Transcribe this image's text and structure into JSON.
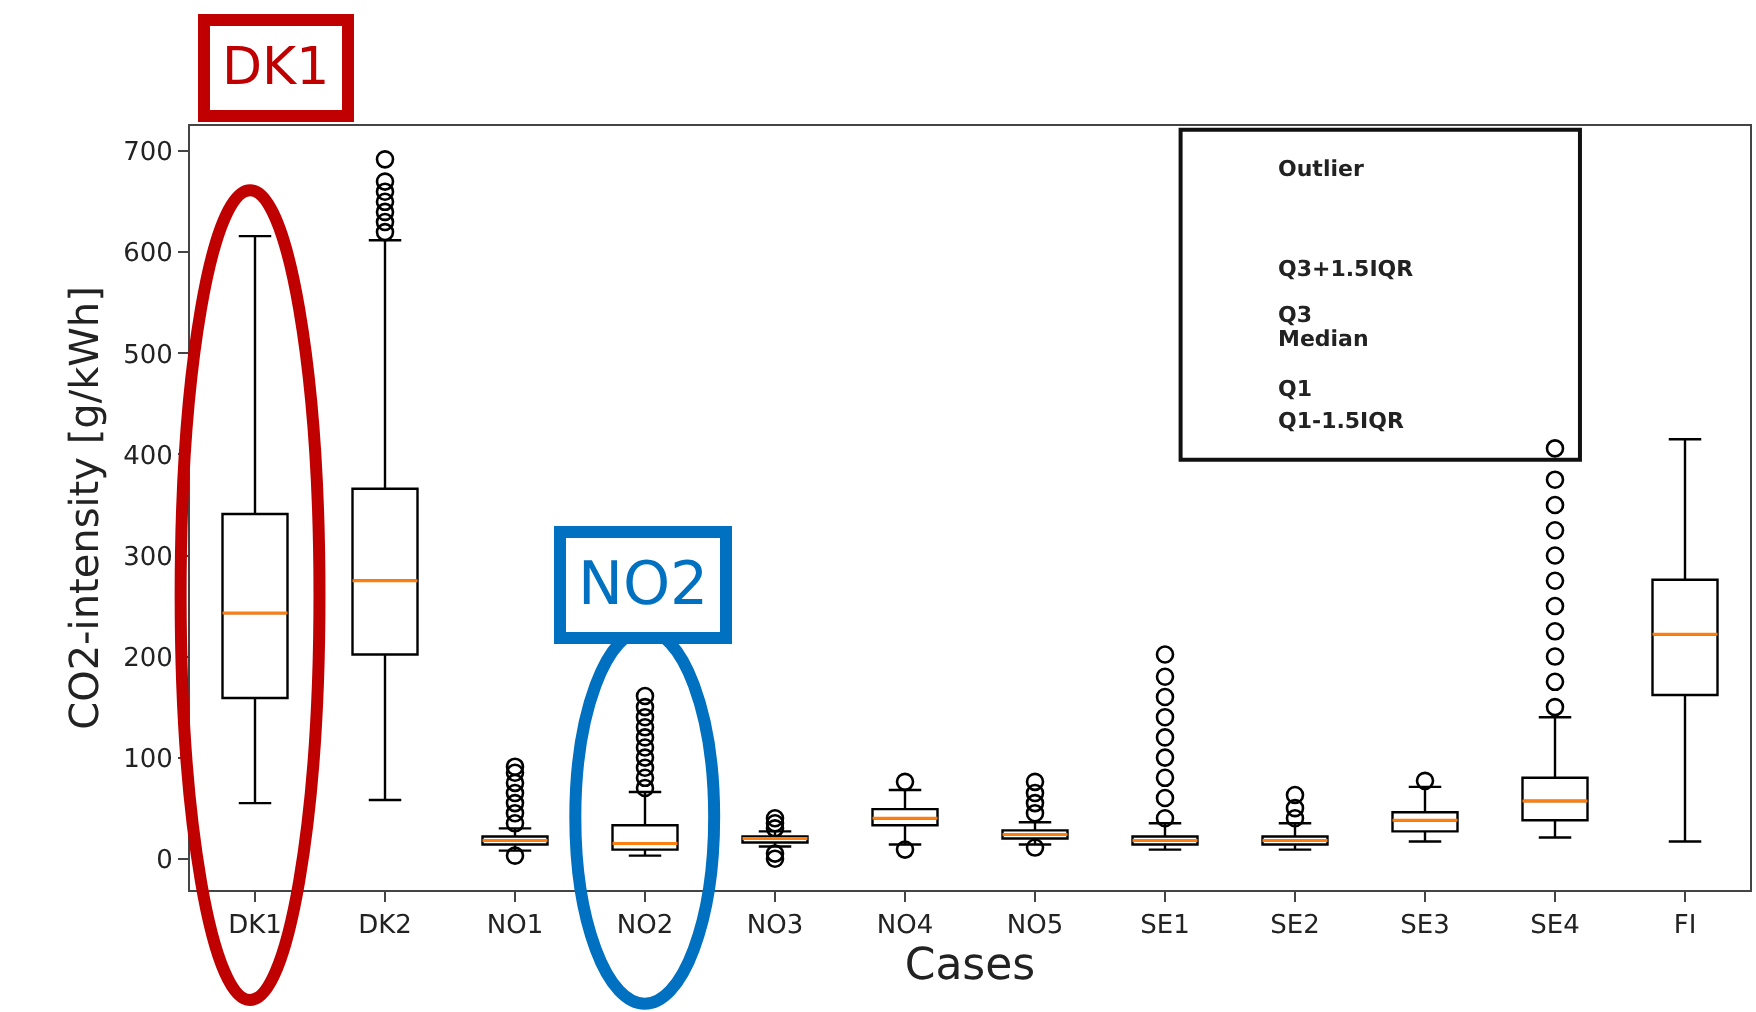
{
  "chart_data": {
    "type": "box",
    "xlabel": "Cases",
    "ylabel": "CO2-intensity [g/kWh]",
    "categories": [
      "DK1",
      "DK2",
      "NO1",
      "NO2",
      "NO3",
      "NO4",
      "NO5",
      "SE1",
      "SE2",
      "SE3",
      "SE4",
      "FI"
    ],
    "boxes": [
      {
        "low": 55,
        "q1": 159,
        "median": 243,
        "q3": 341,
        "high": 616
      },
      {
        "low": 58,
        "q1": 202,
        "median": 275,
        "q3": 366,
        "high": 612,
        "outliers": [
          620,
          630,
          640,
          650,
          660,
          670,
          692
        ]
      },
      {
        "low": 8,
        "q1": 14,
        "median": 18,
        "q3": 22,
        "high": 30,
        "outliers": [
          3,
          35,
          45,
          55,
          65,
          75,
          85,
          91
        ]
      },
      {
        "low": 3,
        "q1": 9,
        "median": 15,
        "q3": 33,
        "high": 66,
        "outliers": [
          70,
          80,
          90,
          100,
          110,
          120,
          130,
          140,
          150,
          161
        ]
      },
      {
        "low": 12,
        "q1": 16,
        "median": 20,
        "q3": 22,
        "high": 27,
        "outliers": [
          0,
          5,
          30,
          35,
          40
        ]
      },
      {
        "low": 14,
        "q1": 33,
        "median": 40,
        "q3": 49,
        "high": 68,
        "outliers": [
          9,
          76
        ]
      },
      {
        "low": 14,
        "q1": 20,
        "median": 24,
        "q3": 28,
        "high": 36,
        "outliers": [
          11,
          45,
          55,
          65,
          76
        ]
      },
      {
        "low": 9,
        "q1": 14,
        "median": 18,
        "q3": 22,
        "high": 35,
        "outliers": [
          40,
          60,
          80,
          100,
          120,
          140,
          160,
          180,
          202
        ]
      },
      {
        "low": 9,
        "q1": 14,
        "median": 18,
        "q3": 22,
        "high": 35,
        "outliers": [
          40,
          50,
          63
        ]
      },
      {
        "low": 17,
        "q1": 27,
        "median": 38,
        "q3": 46,
        "high": 71,
        "outliers": [
          77
        ]
      },
      {
        "low": 21,
        "q1": 38,
        "median": 57,
        "q3": 80,
        "high": 140,
        "outliers": [
          150,
          175,
          200,
          225,
          250,
          275,
          300,
          325,
          350,
          375,
          406
        ]
      },
      {
        "low": 17,
        "q1": 162,
        "median": 222,
        "q3": 276,
        "high": 415
      }
    ],
    "color": "#000000",
    "ylim": [
      -31,
      725
    ],
    "yticks": [
      0,
      100,
      200,
      300,
      400,
      500,
      600,
      700
    ],
    "marker": "circle",
    "annotations": [
      "DK1",
      "NO2",
      "Outlier",
      "Q3+1.5IQR",
      "Q3",
      "Median",
      "Q1",
      "Q1-1.5IQR"
    ]
  }
}
